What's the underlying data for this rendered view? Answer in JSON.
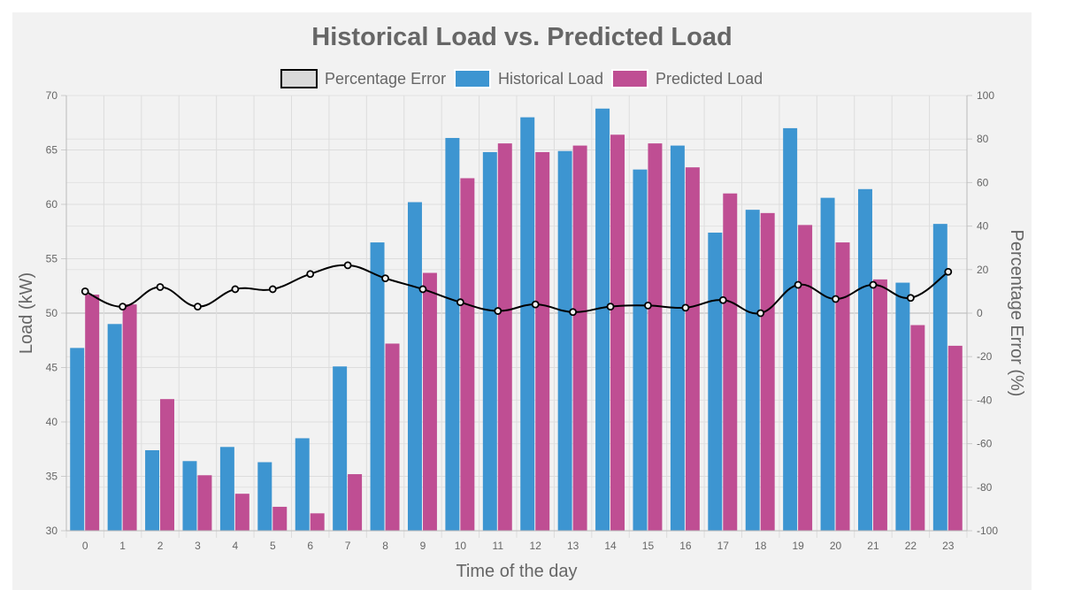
{
  "chart_data": {
    "type": "bar",
    "title": "Historical Load vs. Predicted Load",
    "xlabel": "Time of the day",
    "ylabel": "Load (kW)",
    "y2label": "Percentage Error (%)",
    "categories": [
      "0",
      "1",
      "2",
      "3",
      "4",
      "5",
      "6",
      "7",
      "8",
      "9",
      "10",
      "11",
      "12",
      "13",
      "14",
      "15",
      "16",
      "17",
      "18",
      "19",
      "20",
      "21",
      "22",
      "23"
    ],
    "ylim": [
      30,
      70
    ],
    "yticks": [
      "30",
      "35",
      "40",
      "45",
      "50",
      "55",
      "60",
      "65",
      "70"
    ],
    "y2lim": [
      -100,
      100
    ],
    "y2ticks": [
      "-100",
      "-80",
      "-60",
      "-40",
      "-20",
      "0",
      "20",
      "40",
      "60",
      "80",
      "100"
    ],
    "legend_position": "top",
    "grid": true,
    "series": [
      {
        "name": "Percentage Error",
        "type": "line",
        "axis": "right",
        "color": "#000000",
        "values": [
          10,
          3,
          12,
          3,
          11,
          11,
          18,
          22,
          16,
          11,
          5,
          1,
          4,
          0.5,
          3,
          3.5,
          2.5,
          6,
          0,
          13,
          6.5,
          13,
          7,
          19
        ]
      },
      {
        "name": "Historical Load",
        "type": "bar",
        "axis": "left",
        "color": "#3d95d1",
        "values": [
          46.8,
          49.0,
          37.4,
          36.4,
          37.7,
          36.3,
          38.5,
          45.1,
          56.5,
          60.2,
          66.1,
          64.8,
          68.0,
          64.9,
          68.8,
          63.2,
          65.4,
          57.4,
          59.5,
          67.0,
          60.6,
          61.4,
          52.8,
          58.2
        ]
      },
      {
        "name": "Predicted Load",
        "type": "bar",
        "axis": "left",
        "color": "#bf4e93",
        "values": [
          51.7,
          50.8,
          42.1,
          35.1,
          33.4,
          32.2,
          31.6,
          35.2,
          47.2,
          53.7,
          62.4,
          65.6,
          64.8,
          65.4,
          66.4,
          65.6,
          63.4,
          61.0,
          59.2,
          58.1,
          56.5,
          53.1,
          48.9,
          47.0
        ]
      }
    ]
  }
}
